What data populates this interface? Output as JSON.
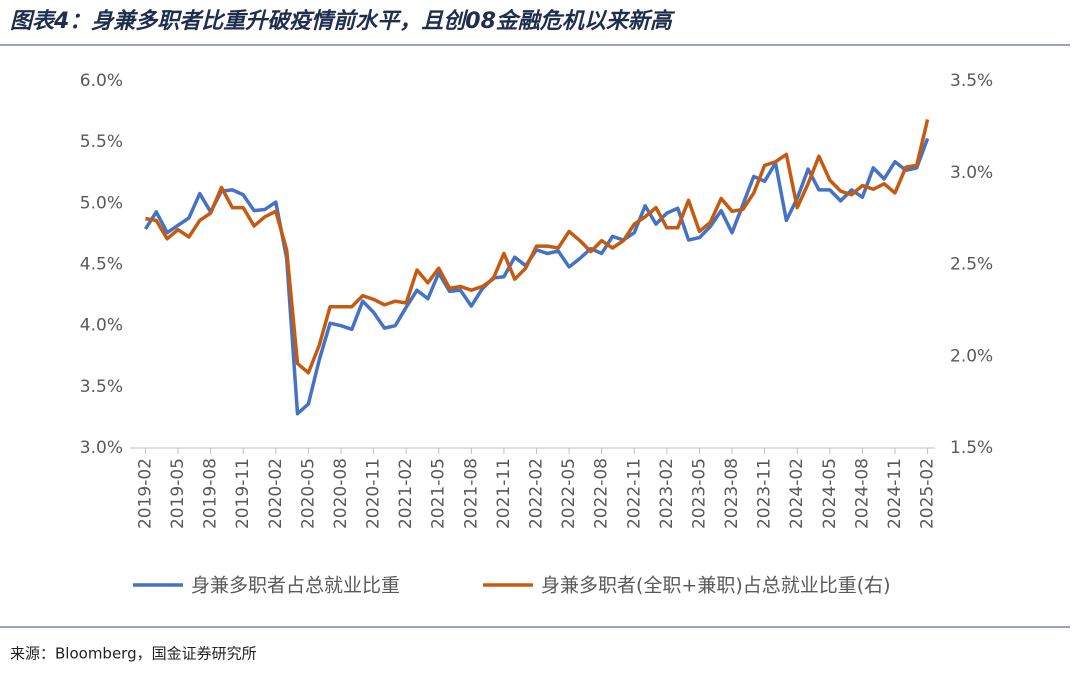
{
  "chart_data": {
    "type": "line",
    "title": "图表4：身兼多职者比重升破疫情前水平，且创08金融危机以来新高",
    "source": "来源：Bloomberg，国金证券研究所",
    "categories": [
      "2019-02",
      null,
      null,
      "2019-05",
      null,
      null,
      "2019-08",
      null,
      null,
      "2019-11",
      null,
      null,
      "2020-02",
      null,
      null,
      "2020-05",
      null,
      null,
      "2020-08",
      null,
      null,
      "2020-11",
      null,
      null,
      "2021-02",
      null,
      null,
      "2021-05",
      null,
      null,
      "2021-08",
      null,
      null,
      "2021-11",
      null,
      null,
      "2022-02",
      null,
      null,
      "2022-05",
      null,
      null,
      "2022-08",
      null,
      null,
      "2022-11",
      null,
      null,
      "2023-02",
      null,
      null,
      "2023-05",
      null,
      null,
      "2023-08",
      null,
      null,
      "2023-11",
      null,
      null,
      "2024-02",
      null,
      null,
      "2024-05",
      null,
      null,
      "2024-08",
      null,
      null,
      "2024-11",
      null,
      null,
      "2025-02"
    ],
    "series": [
      {
        "name": "身兼多职者占总就业比重",
        "color": "#4472c4",
        "axis": "y",
        "values": [
          4.79,
          4.93,
          4.76,
          4.82,
          4.88,
          5.08,
          4.93,
          5.1,
          5.11,
          5.07,
          4.94,
          4.95,
          5.01,
          4.55,
          3.28,
          3.36,
          3.72,
          4.02,
          4.0,
          3.97,
          4.2,
          4.11,
          3.98,
          4.0,
          4.15,
          4.29,
          4.22,
          4.43,
          4.28,
          4.29,
          4.16,
          4.3,
          4.39,
          4.4,
          4.56,
          4.49,
          4.62,
          4.59,
          4.61,
          4.48,
          4.55,
          4.63,
          4.59,
          4.73,
          4.7,
          4.76,
          4.98,
          4.83,
          4.92,
          4.96,
          4.7,
          4.72,
          4.81,
          4.94,
          4.76,
          4.99,
          5.22,
          5.18,
          5.33,
          4.86,
          5.04,
          5.28,
          5.11,
          5.11,
          5.02,
          5.11,
          5.05,
          5.29,
          5.2,
          5.34,
          5.27,
          5.29,
          5.53
        ]
      },
      {
        "name": "身兼多职者(全职+兼职)占总就业比重(右)",
        "color": "#c55a11",
        "axis": "y2",
        "values": [
          2.75,
          2.74,
          2.64,
          2.69,
          2.65,
          2.74,
          2.78,
          2.92,
          2.81,
          2.81,
          2.71,
          2.76,
          2.79,
          2.58,
          1.96,
          1.91,
          2.06,
          2.27,
          2.27,
          2.27,
          2.33,
          2.31,
          2.28,
          2.3,
          2.29,
          2.47,
          2.4,
          2.48,
          2.37,
          2.38,
          2.36,
          2.38,
          2.42,
          2.56,
          2.42,
          2.48,
          2.6,
          2.6,
          2.59,
          2.68,
          2.63,
          2.57,
          2.63,
          2.59,
          2.63,
          2.72,
          2.76,
          2.81,
          2.7,
          2.7,
          2.85,
          2.68,
          2.73,
          2.86,
          2.79,
          2.8,
          2.89,
          3.04,
          3.06,
          3.1,
          2.81,
          2.94,
          3.09,
          2.96,
          2.9,
          2.88,
          2.93,
          2.91,
          2.94,
          2.89,
          3.03,
          3.04,
          3.29
        ]
      }
    ],
    "ylim": [
      3.0,
      6.0
    ],
    "yticks": [
      {
        "value": 3.0,
        "label": "3.0%"
      },
      {
        "value": 3.5,
        "label": "3.5%"
      },
      {
        "value": 4.0,
        "label": "4.0%"
      },
      {
        "value": 4.5,
        "label": "4.5%"
      },
      {
        "value": 5.0,
        "label": "5.0%"
      },
      {
        "value": 5.5,
        "label": "5.5%"
      },
      {
        "value": 6.0,
        "label": "6.0%"
      }
    ],
    "y2lim": [
      1.5,
      3.5
    ],
    "y2ticks": [
      {
        "value": 1.5,
        "label": "1.5%"
      },
      {
        "value": 2.0,
        "label": "2.0%"
      },
      {
        "value": 2.5,
        "label": "2.5%"
      },
      {
        "value": 3.0,
        "label": "3.0%"
      },
      {
        "value": 3.5,
        "label": "3.5%"
      }
    ],
    "legend": "bottom"
  }
}
